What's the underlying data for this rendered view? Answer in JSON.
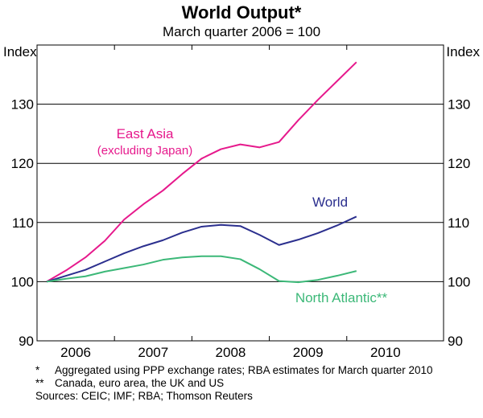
{
  "chart_data": {
    "type": "line",
    "title": "World Output*",
    "subtitle": "March quarter 2006 = 100",
    "ylabel_left": "Index",
    "ylabel_right": "Index",
    "ylim": [
      90,
      140
    ],
    "yticks": [
      90,
      100,
      110,
      120,
      130
    ],
    "xlim": [
      2005.5,
      2010.75
    ],
    "year_labels": [
      "2006",
      "2007",
      "2008",
      "2009",
      "2010"
    ],
    "year_positions": [
      2006.0,
      2007.0,
      2008.0,
      2009.0,
      2010.0
    ],
    "reference_line": 100,
    "x": [
      2005.625,
      2005.875,
      2006.125,
      2006.375,
      2006.625,
      2006.875,
      2007.125,
      2007.375,
      2007.625,
      2007.875,
      2008.125,
      2008.375,
      2008.625,
      2008.875,
      2009.125,
      2009.375,
      2009.625
    ],
    "series": [
      {
        "name": "East Asia",
        "label_line1": "East Asia",
        "label_line2": "(excluding Japan)",
        "color": "#e6198c",
        "values": [
          100.0,
          101.9,
          104.1,
          106.9,
          110.5,
          113.1,
          115.4,
          118.2,
          120.8,
          122.4,
          123.2,
          122.7,
          123.6,
          127.3,
          130.7,
          133.9,
          137.1
        ]
      },
      {
        "name": "World",
        "label_line1": "World",
        "color": "#2b2f8e",
        "values": [
          100.0,
          101.0,
          102.0,
          103.4,
          104.8,
          106.0,
          107.0,
          108.3,
          109.3,
          109.6,
          109.4,
          107.9,
          106.2,
          107.1,
          108.2,
          109.5,
          111.0
        ]
      },
      {
        "name": "North Atlantic**",
        "label_line1": "North Atlantic**",
        "color": "#3cb878",
        "values": [
          100.0,
          100.5,
          100.9,
          101.7,
          102.3,
          102.9,
          103.7,
          104.1,
          104.3,
          104.3,
          103.8,
          102.1,
          100.1,
          99.9,
          100.3,
          101.0,
          101.8
        ]
      }
    ]
  },
  "footnotes": [
    {
      "mark": "*",
      "text": "Aggregated using PPP exchange rates; RBA estimates for March quarter 2010"
    },
    {
      "mark": "**",
      "text": "Canada, euro area, the UK and US"
    }
  ],
  "sources": "Sources: CEIC; IMF; RBA; Thomson Reuters"
}
